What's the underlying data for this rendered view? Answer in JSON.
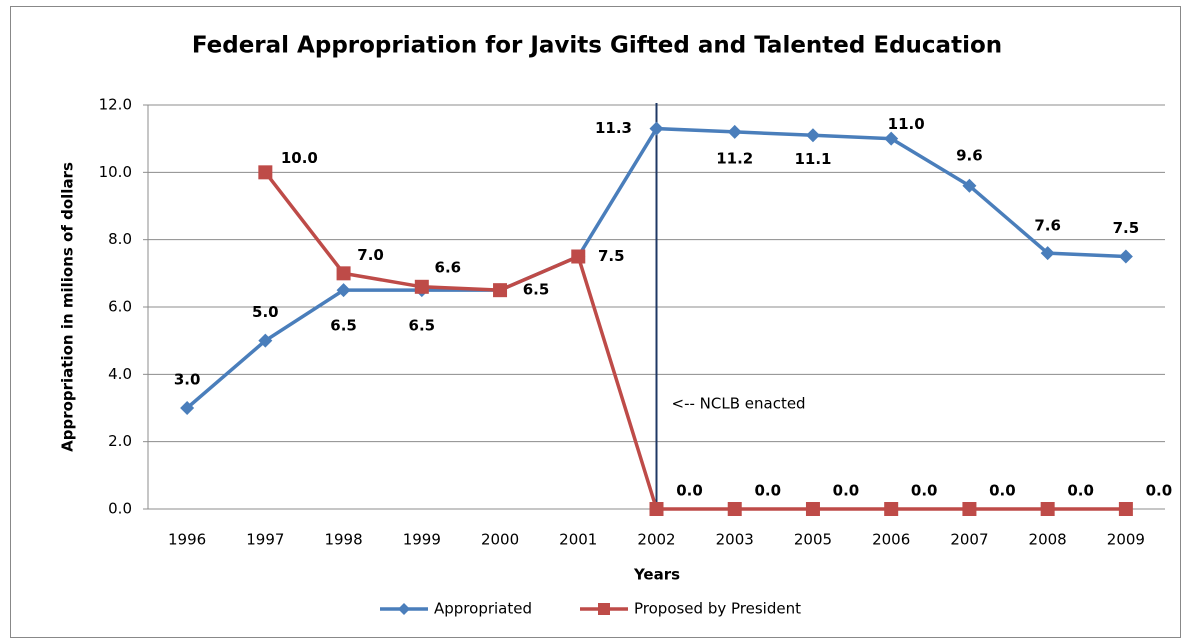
{
  "chart_data": {
    "type": "line",
    "title": "Federal Appropriation for Javits Gifted and Talented Education",
    "x_label": "Years",
    "y_label": "Appropriation in milions of dollars",
    "annotation": "<-- NCLB enacted",
    "marker_category": "2002",
    "categories": [
      "1996",
      "1997",
      "1998",
      "1999",
      "2000",
      "2001",
      "2002",
      "2003",
      "2005",
      "2006",
      "2007",
      "2008",
      "2009"
    ],
    "series": [
      {
        "name": "Appropriated",
        "color": "#4a7ebb",
        "values": [
          3,
          5,
          6.5,
          6.5,
          6.5,
          7.5,
          11.3,
          11.2,
          11.1,
          11,
          9.6,
          7.6,
          7.5
        ],
        "value_labels": [
          "3.0",
          "5.0",
          "6.5",
          "6.5",
          "6.5",
          "7.5",
          "11.3",
          "11.2",
          "11.1",
          "11.0",
          "9.6",
          "7.6",
          "7.5"
        ]
      },
      {
        "name": "Proposed by President",
        "color": "#be4b48",
        "values": [
          null,
          10,
          7,
          6.6,
          6.5,
          7.5,
          0,
          0,
          0,
          0,
          0,
          0,
          0
        ],
        "value_labels": [
          null,
          "10.0",
          "7.0",
          "6.6",
          null,
          null,
          "0.0",
          "0.0",
          "0.0",
          "0.0",
          "0.0",
          "0.0",
          "0.0"
        ]
      }
    ],
    "ylim": [
      0,
      12
    ],
    "yticks": [
      {
        "value": 0,
        "label": "0.0"
      },
      {
        "value": 2,
        "label": "2.0"
      },
      {
        "value": 4,
        "label": "4.0"
      },
      {
        "value": 6,
        "label": "6.0"
      },
      {
        "value": 8,
        "label": "8.0"
      },
      {
        "value": 10,
        "label": "10.0"
      },
      {
        "value": 12,
        "label": "12.0"
      }
    ],
    "grid": true,
    "legend": "bottom"
  }
}
